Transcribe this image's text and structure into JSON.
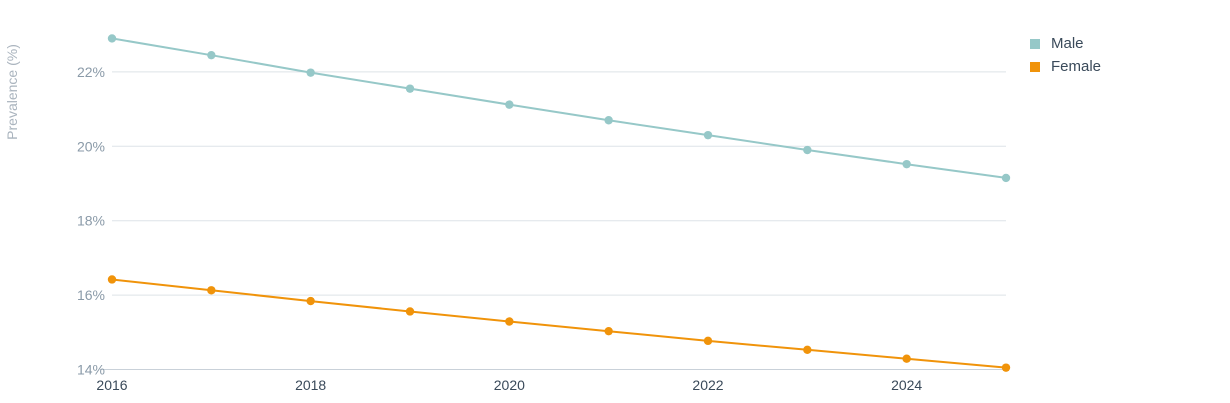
{
  "chart_data": {
    "type": "line",
    "ylabel": "Prevalence (%)",
    "xlabel": "",
    "x": [
      2016,
      2017,
      2018,
      2019,
      2020,
      2021,
      2022,
      2023,
      2024,
      2025
    ],
    "x_ticks": [
      "2016",
      "2018",
      "2020",
      "2022",
      "2024"
    ],
    "y_ticks": [
      "14%",
      "16%",
      "18%",
      "20%",
      "22%"
    ],
    "ylim": [
      14,
      23.2
    ],
    "xlim": [
      2016,
      2025
    ],
    "grid": "horizontal",
    "legend_position": "top-right",
    "series": [
      {
        "name": "Male",
        "color": "#96c8c8",
        "values": [
          22.9,
          22.45,
          21.98,
          21.55,
          21.12,
          20.7,
          20.3,
          19.9,
          19.52,
          19.15
        ]
      },
      {
        "name": "Female",
        "color": "#f0930a",
        "values": [
          16.42,
          16.13,
          15.84,
          15.56,
          15.29,
          15.03,
          14.77,
          14.53,
          14.29,
          14.05
        ]
      }
    ]
  }
}
